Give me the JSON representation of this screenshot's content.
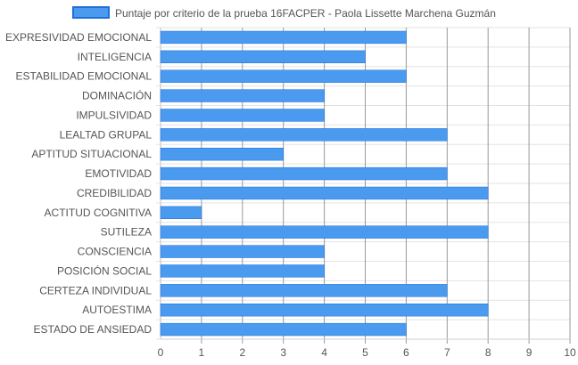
{
  "chart_data": {
    "type": "bar",
    "orientation": "horizontal",
    "categories": [
      "EXPRESIVIDAD EMOCIONAL",
      "INTELIGENCIA",
      "ESTABILIDAD EMOCIONAL",
      "DOMINACIÓN",
      "IMPULSIVIDAD",
      "LEALTAD GRUPAL",
      "APTITUD SITUACIONAL",
      "EMOTIVIDAD",
      "CREDIBILIDAD",
      "ACTITUD COGNITIVA",
      "SUTILEZA",
      "CONSCIENCIA",
      "POSICIÓN SOCIAL",
      "CERTEZA INDIVIDUAL",
      "AUTOESTIMA",
      "ESTADO DE ANSIEDAD"
    ],
    "series": [
      {
        "name": "Puntaje por criterio de la prueba 16FACPER - Paola Lissette Marchena Guzmán",
        "values": [
          6,
          5,
          6,
          4,
          4,
          7,
          3,
          7,
          8,
          1,
          8,
          4,
          4,
          7,
          8,
          6
        ],
        "color": "#4a9af0",
        "border_color": "#1f6fd6"
      }
    ],
    "xlim": [
      0,
      10
    ],
    "x_ticks": [
      "0",
      "1",
      "2",
      "3",
      "4",
      "5",
      "6",
      "7",
      "8",
      "9",
      "10"
    ],
    "grid": true,
    "legend_position": "top",
    "title": "",
    "xlabel": "",
    "ylabel": ""
  }
}
